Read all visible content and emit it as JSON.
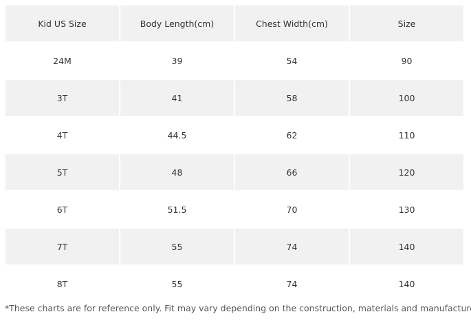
{
  "table": {
    "header": [
      "Kid US Size",
      "Body Length(cm)",
      "Chest Width(cm)",
      "Size"
    ],
    "rows": [
      [
        "24M",
        "39",
        "54",
        "90"
      ],
      [
        "3T",
        "41",
        "58",
        "100"
      ],
      [
        "4T",
        "44.5",
        "62",
        "110"
      ],
      [
        "5T",
        "48",
        "66",
        "120"
      ],
      [
        "6T",
        "51.5",
        "70",
        "130"
      ],
      [
        "7T",
        "55",
        "74",
        "140"
      ],
      [
        "8T",
        "55",
        "74",
        "140"
      ]
    ]
  },
  "footnote": "*These charts are for reference only. Fit may vary depending on the construction, materials and manufacturer."
}
